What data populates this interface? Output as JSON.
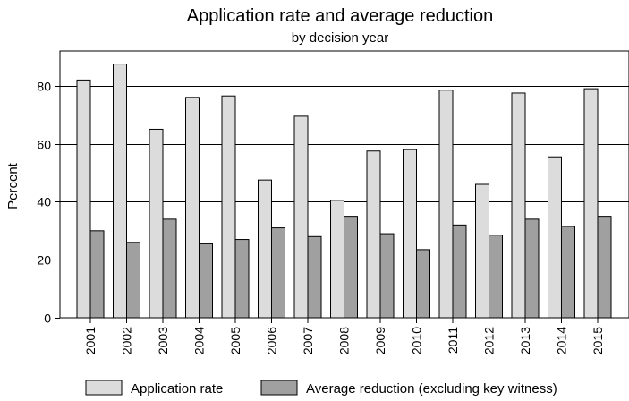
{
  "chart_data": {
    "type": "bar",
    "title": "Application rate and average reduction",
    "subtitle": "by decision year",
    "xlabel": "",
    "ylabel": "Percent",
    "ylim": [
      0,
      92
    ],
    "yticks": [
      0,
      20,
      40,
      60,
      80
    ],
    "grid": true,
    "legend_position": "bottom",
    "categories": [
      "2001",
      "2002",
      "2003",
      "2004",
      "2005",
      "2006",
      "2007",
      "2008",
      "2009",
      "2010",
      "2011",
      "2012",
      "2013",
      "2014",
      "2015"
    ],
    "series": [
      {
        "name": "Application rate",
        "color": "#dcdcdc",
        "values": [
          82,
          87.5,
          65,
          76,
          76.5,
          47.5,
          69.5,
          40.5,
          57.5,
          58,
          78.5,
          46,
          77.5,
          55.5,
          79
        ]
      },
      {
        "name": "Average reduction (excluding key witness)",
        "color": "#a0a0a0",
        "values": [
          30,
          26,
          34,
          25.5,
          27,
          31,
          28,
          35,
          29,
          23.5,
          32,
          28.5,
          34,
          31.5,
          35
        ]
      }
    ]
  }
}
